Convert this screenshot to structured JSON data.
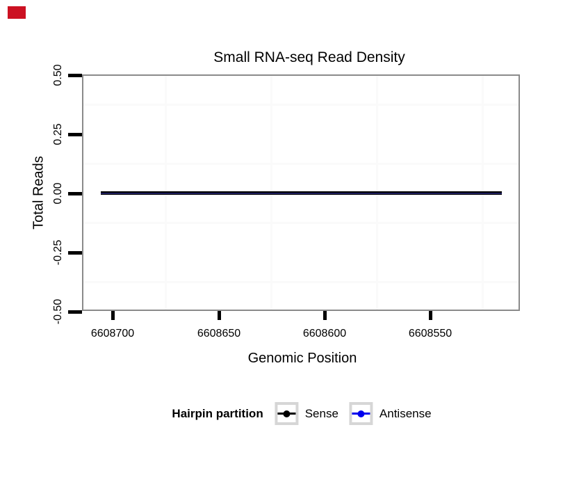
{
  "overlay_marker": {
    "color": "#cc1122"
  },
  "chart_data": {
    "type": "line",
    "title": "Small RNA-seq Read Density",
    "xlabel": "Genomic Position",
    "ylabel": "Total Reads",
    "x_axis": {
      "tick_labels": [
        "6608700",
        "6608650",
        "6608600",
        "6608550"
      ],
      "tick_values": [
        6608700,
        6608650,
        6608600,
        6608550
      ],
      "reversed": true,
      "range": [
        6608710,
        6608510
      ]
    },
    "y_axis": {
      "tick_labels": [
        "0.50",
        "0.25",
        "0.00",
        "-0.25",
        "-0.50"
      ],
      "tick_values": [
        0.5,
        0.25,
        0.0,
        -0.25,
        -0.5
      ],
      "range": [
        -0.5,
        0.5
      ]
    },
    "grid": {
      "major": "none",
      "minor": "very light gray at tick midpoints"
    },
    "series": [
      {
        "name": "Sense",
        "color": "#000000",
        "x_start": 6608706,
        "x_end": 6608516,
        "constant_y": 0
      },
      {
        "name": "Antisense",
        "color": "#0000ee",
        "x_start": 6608706,
        "x_end": 6608516,
        "constant_y": 0
      }
    ],
    "overlap_core_color": "#1e1e5e",
    "legend": {
      "position": "bottom",
      "title": "Hairpin partition",
      "entries": [
        {
          "label": "Sense",
          "color": "#000000"
        },
        {
          "label": "Antisense",
          "color": "#0000ee"
        }
      ]
    }
  }
}
